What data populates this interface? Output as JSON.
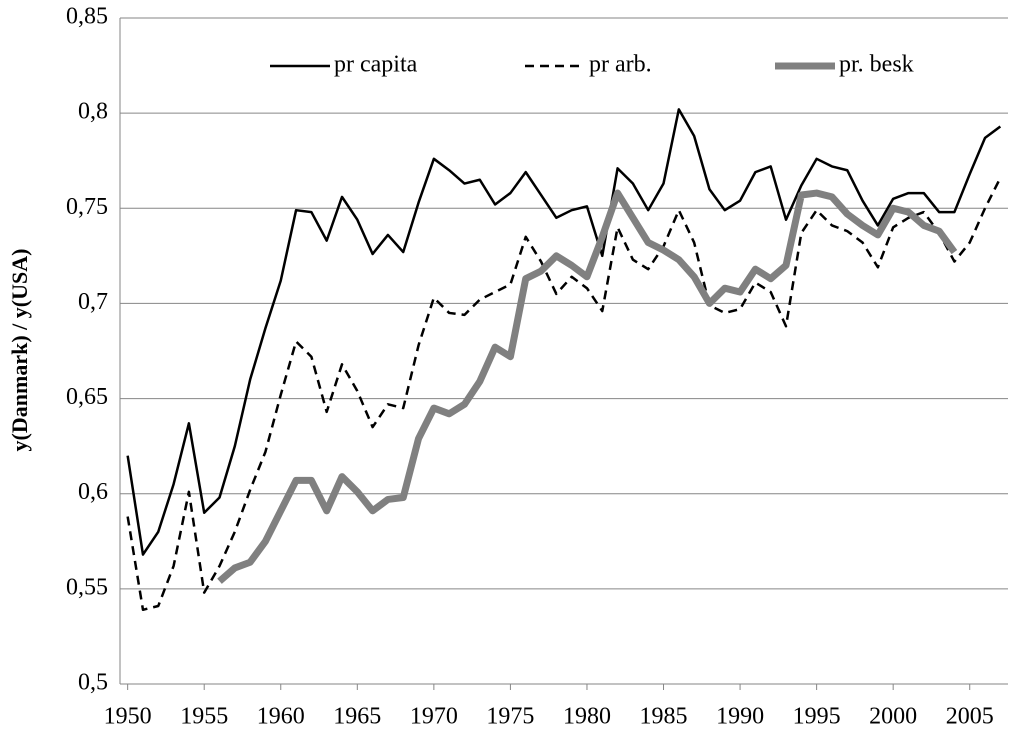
{
  "chart_data": {
    "type": "line",
    "ylabel": "y(Danmark) / y(USA)",
    "x": [
      1950,
      1951,
      1952,
      1953,
      1954,
      1955,
      1956,
      1957,
      1958,
      1959,
      1960,
      1961,
      1962,
      1963,
      1964,
      1965,
      1966,
      1967,
      1968,
      1969,
      1970,
      1971,
      1972,
      1973,
      1974,
      1975,
      1976,
      1977,
      1978,
      1979,
      1980,
      1981,
      1982,
      1983,
      1984,
      1985,
      1986,
      1987,
      1988,
      1989,
      1990,
      1991,
      1992,
      1993,
      1994,
      1995,
      1996,
      1997,
      1998,
      1999,
      2000,
      2001,
      2002,
      2003,
      2004,
      2005,
      2006,
      2007
    ],
    "series": [
      {
        "name": "pr capita",
        "color": "#000000",
        "dash": "solid",
        "width": 2.5,
        "values": [
          0.62,
          0.568,
          0.58,
          0.605,
          0.637,
          0.59,
          0.598,
          0.625,
          0.66,
          0.687,
          0.712,
          0.749,
          0.748,
          0.733,
          0.756,
          0.744,
          0.726,
          0.736,
          0.727,
          0.753,
          0.776,
          0.77,
          0.763,
          0.765,
          0.752,
          0.758,
          0.769,
          0.757,
          0.745,
          0.749,
          0.751,
          0.725,
          0.771,
          0.763,
          0.749,
          0.763,
          0.802,
          0.788,
          0.76,
          0.749,
          0.754,
          0.769,
          0.772,
          0.744,
          0.762,
          0.776,
          0.772,
          0.77,
          0.754,
          0.741,
          0.755,
          0.758,
          0.758,
          0.748,
          0.748,
          0.768,
          0.787,
          0.793
        ]
      },
      {
        "name": "pr arb.",
        "color": "#000000",
        "dash": "dashed",
        "width": 2.5,
        "values": [
          0.588,
          0.539,
          0.541,
          0.562,
          0.601,
          0.548,
          0.562,
          0.58,
          0.602,
          0.622,
          0.652,
          0.68,
          0.672,
          0.643,
          0.668,
          0.654,
          0.635,
          0.647,
          0.645,
          0.678,
          0.703,
          0.695,
          0.694,
          0.702,
          0.706,
          0.71,
          0.735,
          0.722,
          0.705,
          0.714,
          0.708,
          0.696,
          0.74,
          0.723,
          0.718,
          0.73,
          0.749,
          0.732,
          0.699,
          0.695,
          0.697,
          0.711,
          0.706,
          0.688,
          0.737,
          0.749,
          0.741,
          0.738,
          0.732,
          0.719,
          0.74,
          0.745,
          0.748,
          0.737,
          0.722,
          0.732,
          0.75,
          0.766
        ]
      },
      {
        "name": "pr. besk",
        "color": "#808080",
        "dash": "solid",
        "width": 7,
        "values": [
          null,
          null,
          null,
          null,
          null,
          null,
          0.554,
          0.561,
          0.564,
          0.575,
          0.591,
          0.607,
          0.607,
          0.591,
          0.609,
          0.601,
          0.591,
          0.597,
          0.598,
          0.629,
          0.645,
          0.642,
          0.647,
          0.659,
          0.677,
          0.672,
          0.713,
          0.717,
          0.725,
          0.72,
          0.714,
          0.735,
          0.758,
          0.745,
          0.732,
          0.728,
          0.723,
          0.714,
          0.7,
          0.708,
          0.706,
          0.718,
          0.713,
          0.72,
          0.757,
          0.758,
          0.756,
          0.747,
          0.741,
          0.736,
          0.75,
          0.748,
          0.741,
          0.738,
          0.727,
          null,
          null,
          null
        ]
      }
    ],
    "xlim": [
      1949.5,
      2007.5
    ],
    "xticks": [
      1950,
      1955,
      1960,
      1965,
      1970,
      1975,
      1980,
      1985,
      1990,
      1995,
      2000,
      2005
    ],
    "ylim": [
      0.5,
      0.85
    ],
    "yticks": [
      {
        "value": 0.5,
        "label": "0,5"
      },
      {
        "value": 0.55,
        "label": "0,55"
      },
      {
        "value": 0.6,
        "label": "0,6"
      },
      {
        "value": 0.65,
        "label": "0,65"
      },
      {
        "value": 0.7,
        "label": "0,7"
      },
      {
        "value": 0.75,
        "label": "0,75"
      },
      {
        "value": 0.8,
        "label": "0,8"
      },
      {
        "value": 0.85,
        "label": "0,85"
      }
    ],
    "grid": true,
    "legend": "top"
  }
}
